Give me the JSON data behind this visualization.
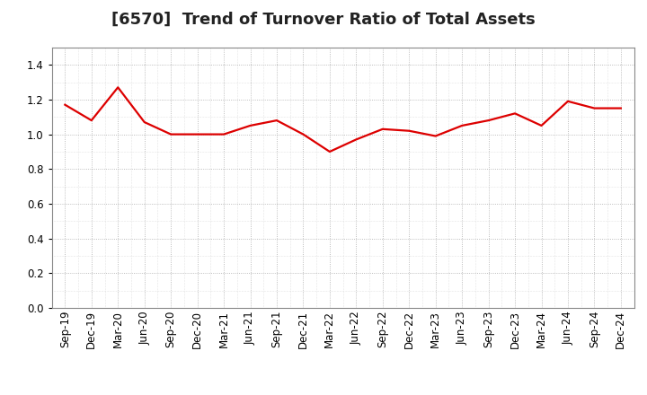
{
  "title": "[6570]  Trend of Turnover Ratio of Total Assets",
  "labels": [
    "Sep-19",
    "Dec-19",
    "Mar-20",
    "Jun-20",
    "Sep-20",
    "Dec-20",
    "Mar-21",
    "Jun-21",
    "Sep-21",
    "Dec-21",
    "Mar-22",
    "Jun-22",
    "Sep-22",
    "Dec-22",
    "Mar-23",
    "Jun-23",
    "Sep-23",
    "Dec-23",
    "Mar-24",
    "Jun-24",
    "Sep-24",
    "Dec-24"
  ],
  "values": [
    1.17,
    1.08,
    1.27,
    1.07,
    1.0,
    1.0,
    1.0,
    1.05,
    1.08,
    1.0,
    0.9,
    0.97,
    1.03,
    1.02,
    0.99,
    1.05,
    1.08,
    1.12,
    1.05,
    1.19,
    1.15,
    1.15
  ],
  "line_color": "#dd0000",
  "line_width": 1.6,
  "ylim": [
    0.0,
    1.5
  ],
  "yticks": [
    0.0,
    0.2,
    0.4,
    0.6,
    0.8,
    1.0,
    1.2,
    1.4
  ],
  "grid_color": "#aaaaaa",
  "background_color": "#ffffff",
  "plot_bg_color": "#ffffff",
  "title_fontsize": 13,
  "tick_fontsize": 8.5,
  "title_color": "#222222"
}
